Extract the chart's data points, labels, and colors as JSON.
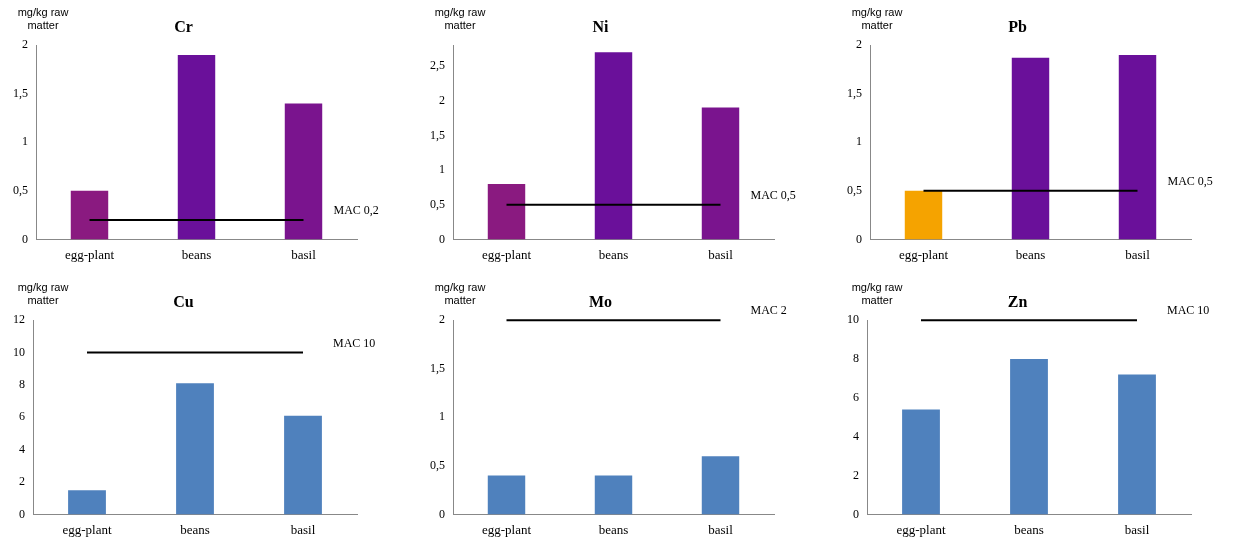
{
  "chart_data": [
    {
      "type": "bar",
      "title": "Cr",
      "ylabel": "mg/kg raw matter",
      "categories": [
        "egg-plant",
        "beans",
        "basil"
      ],
      "values": [
        0.5,
        1.9,
        1.4
      ],
      "colors": [
        "#8a1a80",
        "#6a109a",
        "#7a148e"
      ],
      "ylim": [
        0,
        2
      ],
      "yticks": [
        0,
        {
          "value": 0.5,
          "label": "0,5"
        },
        1,
        {
          "value": 1.5,
          "label": "1,5"
        },
        2
      ],
      "ref_lines": [
        {
          "axis": "y",
          "value": 0.2,
          "label": "MAC 0,2",
          "color": "#000000"
        }
      ],
      "legend": false,
      "grid": false
    },
    {
      "type": "bar",
      "title": "Ni",
      "ylabel": "mg/kg raw matter",
      "categories": [
        "egg-plant",
        "beans",
        "basil"
      ],
      "values": [
        0.8,
        2.7,
        1.9
      ],
      "colors": [
        "#8a1a80",
        "#6a109a",
        "#7a148e"
      ],
      "ylim": [
        0,
        2.8
      ],
      "yticks": [
        0,
        {
          "value": 0.5,
          "label": "0,5"
        },
        1,
        {
          "value": 1.5,
          "label": "1,5"
        },
        2,
        {
          "value": 2.5,
          "label": "2,5"
        }
      ],
      "ref_lines": [
        {
          "axis": "y",
          "value": 0.5,
          "label": "MAC 0,5",
          "color": "#000000"
        }
      ],
      "legend": false,
      "grid": false
    },
    {
      "type": "bar",
      "title": "Pb",
      "ylabel": "mg/kg raw matter",
      "categories": [
        "egg-plant",
        "beans",
        "basil"
      ],
      "values": [
        0.5,
        1.87,
        1.9
      ],
      "colors": [
        "#f5a300",
        "#6a109a",
        "#6a109a"
      ],
      "ylim": [
        0,
        2
      ],
      "yticks": [
        0,
        {
          "value": 0.5,
          "label": "0,5"
        },
        1,
        {
          "value": 1.5,
          "label": "1,5"
        },
        2
      ],
      "ref_lines": [
        {
          "axis": "y",
          "value": 0.5,
          "label": "MAC 0,5",
          "color": "#000000"
        }
      ],
      "legend": false,
      "grid": false
    },
    {
      "type": "bar",
      "title": "Cu",
      "ylabel": "mg/kg raw matter",
      "categories": [
        "egg-plant",
        "beans",
        "basil"
      ],
      "values": [
        1.5,
        8.1,
        6.1
      ],
      "colors": [
        "#4f81bd",
        "#4f81bd",
        "#4f81bd"
      ],
      "ylim": [
        0,
        12
      ],
      "yticks": [
        0,
        2,
        4,
        6,
        8,
        10,
        12
      ],
      "ref_lines": [
        {
          "axis": "y",
          "value": 10,
          "label": "MAC 10",
          "color": "#000000"
        }
      ],
      "legend": false,
      "grid": false
    },
    {
      "type": "bar",
      "title": "Mo",
      "ylabel": "mg/kg raw matter",
      "categories": [
        "egg-plant",
        "beans",
        "basil"
      ],
      "values": [
        0.4,
        0.4,
        0.6
      ],
      "colors": [
        "#4f81bd",
        "#4f81bd",
        "#4f81bd"
      ],
      "ylim": [
        0,
        2
      ],
      "yticks": [
        0,
        {
          "value": 0.5,
          "label": "0,5"
        },
        1,
        {
          "value": 1.5,
          "label": "1,5"
        },
        2
      ],
      "ref_lines": [
        {
          "axis": "y",
          "value": 2,
          "label": "MAC 2",
          "color": "#000000"
        }
      ],
      "legend": false,
      "grid": false
    },
    {
      "type": "bar",
      "title": "Zn",
      "ylabel": "mg/kg raw matter",
      "categories": [
        "egg-plant",
        "beans",
        "basil"
      ],
      "values": [
        5.4,
        8.0,
        7.2
      ],
      "colors": [
        "#4f81bd",
        "#4f81bd",
        "#4f81bd"
      ],
      "ylim": [
        0,
        10
      ],
      "yticks": [
        0,
        2,
        4,
        6,
        8,
        10
      ],
      "ref_lines": [
        {
          "axis": "y",
          "value": 10,
          "label": "MAC 10",
          "color": "#000000"
        }
      ],
      "legend": false,
      "grid": false
    }
  ]
}
